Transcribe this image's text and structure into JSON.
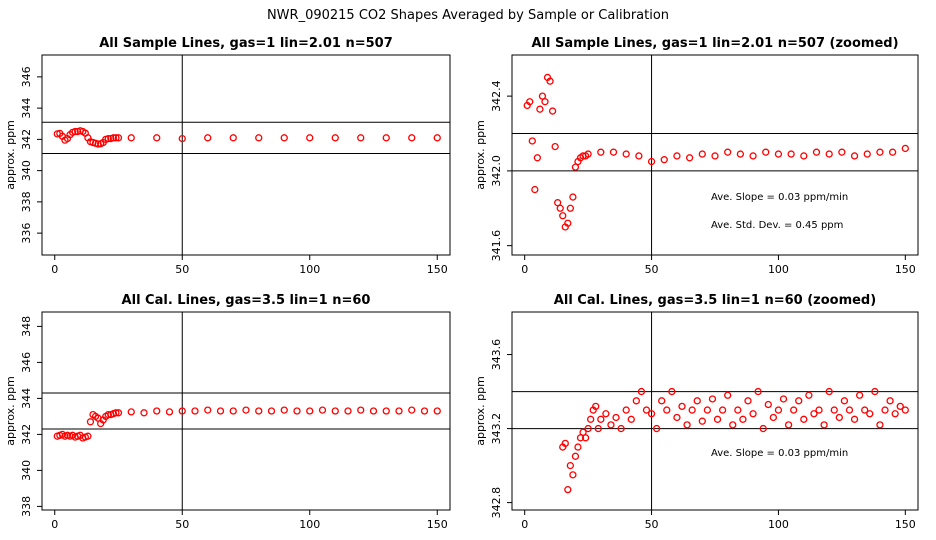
{
  "figure": {
    "suptitle": "NWR_090215  CO2 Shapes Averaged by Sample or Calibration"
  },
  "chart_data": [
    {
      "type": "scatter",
      "title": "All Sample Lines, gas=1 lin=2.01 n=507",
      "xlabel": "",
      "ylabel": "approx. ppm",
      "xlim": [
        -5,
        155
      ],
      "ylim": [
        334.6,
        347.4
      ],
      "xticks": [
        0,
        50,
        100,
        150
      ],
      "yticks": [
        336,
        338,
        340,
        342,
        344,
        346
      ],
      "vline": 50,
      "hlines": [
        341.1,
        343.1
      ],
      "marker_color": "#ff0000",
      "x": [
        1,
        2,
        3,
        4,
        5,
        6,
        7,
        8,
        9,
        10,
        11,
        12,
        13,
        14,
        15,
        16,
        17,
        18,
        19,
        20,
        21,
        22,
        23,
        24,
        25,
        30,
        40,
        50,
        60,
        70,
        80,
        90,
        100,
        110,
        120,
        130,
        140,
        150
      ],
      "y": [
        342.35,
        342.38,
        342.2,
        341.95,
        342.05,
        342.3,
        342.45,
        342.5,
        342.5,
        342.55,
        342.5,
        342.4,
        342.1,
        341.85,
        341.8,
        341.75,
        341.7,
        341.72,
        341.8,
        342.0,
        342.05,
        342.05,
        342.1,
        342.1,
        342.1,
        342.1,
        342.1,
        342.05,
        342.1,
        342.1,
        342.1,
        342.1,
        342.1,
        342.1,
        342.1,
        342.1,
        342.1,
        342.1
      ],
      "annotations": []
    },
    {
      "type": "scatter",
      "title": "All Sample Lines, gas=1 lin=2.01 n=507 (zoomed)",
      "xlabel": "",
      "ylabel": "approx. ppm",
      "xlim": [
        -5,
        155
      ],
      "ylim": [
        341.55,
        342.62
      ],
      "xticks": [
        0,
        50,
        100,
        150
      ],
      "yticks": [
        341.6,
        342.0,
        342.4
      ],
      "vline": 50,
      "hlines": [
        342.0,
        342.2
      ],
      "marker_color": "#ff0000",
      "x": [
        1,
        2,
        3,
        4,
        5,
        6,
        7,
        8,
        9,
        10,
        11,
        12,
        13,
        14,
        15,
        16,
        17,
        18,
        19,
        20,
        21,
        22,
        23,
        24,
        25,
        30,
        35,
        40,
        45,
        50,
        55,
        60,
        65,
        70,
        75,
        80,
        85,
        90,
        95,
        100,
        105,
        110,
        115,
        120,
        125,
        130,
        135,
        140,
        145,
        150
      ],
      "y": [
        342.35,
        342.37,
        342.16,
        341.9,
        342.07,
        342.33,
        342.4,
        342.37,
        342.5,
        342.48,
        342.32,
        342.13,
        341.83,
        341.8,
        341.76,
        341.7,
        341.72,
        341.8,
        341.86,
        342.02,
        342.05,
        342.07,
        342.08,
        342.08,
        342.09,
        342.1,
        342.1,
        342.09,
        342.08,
        342.05,
        342.06,
        342.08,
        342.07,
        342.09,
        342.08,
        342.1,
        342.09,
        342.08,
        342.1,
        342.09,
        342.09,
        342.08,
        342.1,
        342.09,
        342.1,
        342.08,
        342.09,
        342.1,
        342.1,
        342.12
      ],
      "annotations": [
        "Ave. Slope =  0.03  ppm/min",
        "Ave. Std. Dev. = 0.45  ppm"
      ]
    },
    {
      "type": "scatter",
      "title": "All Cal. Lines, gas=3.5 lin=1 n=60",
      "xlabel": "",
      "ylabel": "approx. ppm",
      "xlim": [
        -5,
        155
      ],
      "ylim": [
        337.8,
        348.8
      ],
      "xticks": [
        0,
        50,
        100,
        150
      ],
      "yticks": [
        338,
        340,
        342,
        344,
        346,
        348
      ],
      "vline": 50,
      "hlines": [
        342.3,
        344.3
      ],
      "marker_color": "#ff0000",
      "x": [
        1,
        2,
        3,
        4,
        5,
        6,
        7,
        8,
        9,
        10,
        11,
        12,
        13,
        14,
        15,
        16,
        17,
        18,
        19,
        20,
        21,
        22,
        23,
        24,
        25,
        30,
        35,
        40,
        45,
        50,
        55,
        60,
        65,
        70,
        75,
        80,
        85,
        90,
        95,
        100,
        105,
        110,
        115,
        120,
        125,
        130,
        135,
        140,
        145,
        150
      ],
      "y": [
        341.9,
        341.95,
        342.0,
        341.9,
        341.95,
        341.9,
        341.95,
        341.85,
        341.9,
        341.95,
        341.8,
        341.85,
        341.9,
        342.7,
        343.1,
        343.0,
        342.9,
        342.6,
        342.8,
        343.0,
        343.1,
        343.1,
        343.15,
        343.2,
        343.2,
        343.25,
        343.2,
        343.3,
        343.25,
        343.3,
        343.3,
        343.35,
        343.3,
        343.3,
        343.35,
        343.3,
        343.3,
        343.35,
        343.3,
        343.3,
        343.35,
        343.3,
        343.3,
        343.35,
        343.3,
        343.3,
        343.3,
        343.35,
        343.3,
        343.3
      ],
      "annotations": []
    },
    {
      "type": "scatter",
      "title": "All Cal. Lines, gas=3.5 lin=1 n=60 (zoomed)",
      "xlabel": "",
      "ylabel": "approx. ppm",
      "xlim": [
        -5,
        155
      ],
      "ylim": [
        342.76,
        343.83
      ],
      "xticks": [
        0,
        50,
        100,
        150
      ],
      "yticks": [
        342.8,
        343.2,
        343.6
      ],
      "vline": 50,
      "hlines": [
        343.2,
        343.4
      ],
      "marker_color": "#ff0000",
      "x": [
        15,
        16,
        17,
        18,
        19,
        20,
        21,
        22,
        23,
        24,
        25,
        26,
        27,
        28,
        29,
        30,
        32,
        34,
        36,
        38,
        40,
        42,
        44,
        46,
        48,
        50,
        52,
        54,
        56,
        58,
        60,
        62,
        64,
        66,
        68,
        70,
        72,
        74,
        76,
        78,
        80,
        82,
        84,
        86,
        88,
        90,
        92,
        94,
        96,
        98,
        100,
        102,
        104,
        106,
        108,
        110,
        112,
        114,
        116,
        118,
        120,
        122,
        124,
        126,
        128,
        130,
        132,
        134,
        136,
        138,
        140,
        142,
        144,
        146,
        148,
        150
      ],
      "y": [
        343.1,
        343.12,
        342.87,
        343.0,
        342.95,
        343.05,
        343.1,
        343.15,
        343.18,
        343.15,
        343.2,
        343.25,
        343.3,
        343.32,
        343.2,
        343.25,
        343.28,
        343.22,
        343.26,
        343.2,
        343.3,
        343.25,
        343.35,
        343.4,
        343.3,
        343.28,
        343.2,
        343.35,
        343.3,
        343.4,
        343.26,
        343.32,
        343.22,
        343.3,
        343.35,
        343.24,
        343.3,
        343.36,
        343.25,
        343.3,
        343.38,
        343.22,
        343.3,
        343.25,
        343.35,
        343.28,
        343.4,
        343.2,
        343.33,
        343.26,
        343.3,
        343.36,
        343.22,
        343.3,
        343.35,
        343.25,
        343.38,
        343.28,
        343.3,
        343.22,
        343.4,
        343.3,
        343.26,
        343.35,
        343.3,
        343.25,
        343.38,
        343.3,
        343.28,
        343.4,
        343.22,
        343.3,
        343.35,
        343.28,
        343.32,
        343.3
      ],
      "annotations": [
        "Ave. Slope =  0.03  ppm/min"
      ]
    }
  ]
}
